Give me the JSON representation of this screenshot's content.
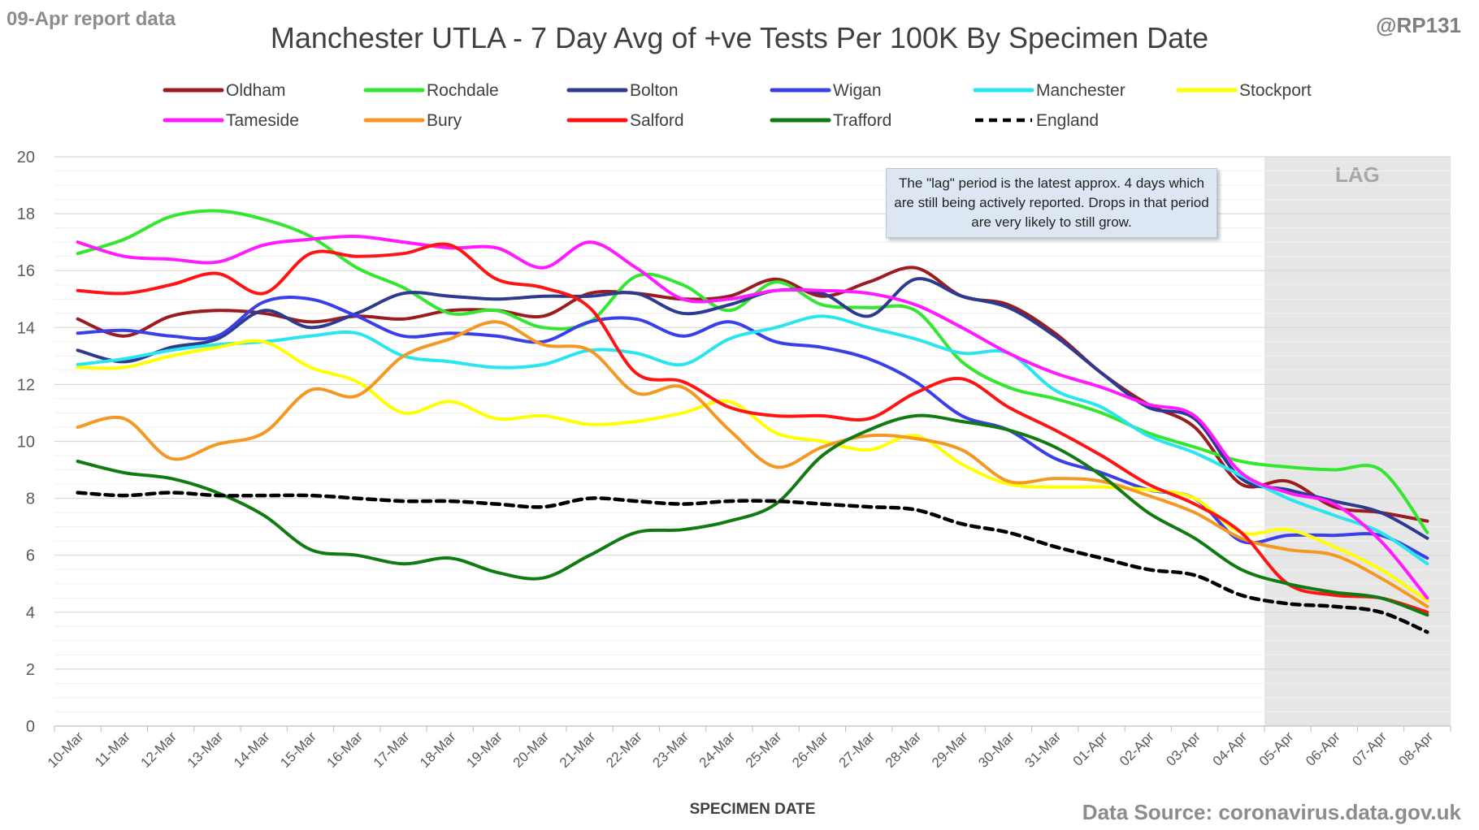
{
  "header": {
    "report_label": "09-Apr report data",
    "handle": "@RP131",
    "source": "Data Source: coronavirus.data.gov.uk"
  },
  "annotation": {
    "text": "The \"lag\" period is the latest approx. 4 days which are still being actively reported. Drops in that period are very likely to still grow."
  },
  "chart_data": {
    "type": "line",
    "title": "Manchester UTLA - 7 Day Avg of +ve Tests Per 100K By Specimen Date",
    "xlabel": "SPECIMEN DATE",
    "ylabel": "",
    "ylim": [
      0,
      20
    ],
    "yticks": [
      0,
      2,
      4,
      6,
      8,
      10,
      12,
      14,
      16,
      18,
      20
    ],
    "grid": true,
    "legend_position": "top",
    "lag_region": {
      "label": "LAG",
      "from": "05-Apr",
      "to": "08-Apr"
    },
    "categories": [
      "10-Mar",
      "11-Mar",
      "12-Mar",
      "13-Mar",
      "14-Mar",
      "15-Mar",
      "16-Mar",
      "17-Mar",
      "18-Mar",
      "19-Mar",
      "20-Mar",
      "21-Mar",
      "22-Mar",
      "23-Mar",
      "24-Mar",
      "25-Mar",
      "26-Mar",
      "27-Mar",
      "28-Mar",
      "29-Mar",
      "30-Mar",
      "31-Mar",
      "01-Apr",
      "02-Apr",
      "03-Apr",
      "04-Apr",
      "05-Apr",
      "06-Apr",
      "07-Apr",
      "08-Apr"
    ],
    "series": [
      {
        "name": "Oldham",
        "color": "#9b1b1e",
        "dash": false,
        "values": [
          14.3,
          13.7,
          14.4,
          14.6,
          14.5,
          14.2,
          14.4,
          14.3,
          14.6,
          14.6,
          14.4,
          15.2,
          15.2,
          15.0,
          15.1,
          15.7,
          15.1,
          15.6,
          16.1,
          15.1,
          14.8,
          13.8,
          12.4,
          11.3,
          10.5,
          8.5,
          8.6,
          7.7,
          7.5,
          7.2
        ]
      },
      {
        "name": "Rochdale",
        "color": "#33e62e",
        "dash": false,
        "values": [
          16.6,
          17.1,
          17.9,
          18.1,
          17.8,
          17.2,
          16.1,
          15.4,
          14.5,
          14.6,
          14.0,
          14.2,
          15.8,
          15.5,
          14.6,
          15.6,
          14.8,
          14.7,
          14.6,
          12.8,
          11.9,
          11.5,
          11.0,
          10.3,
          9.8,
          9.3,
          9.1,
          9.0,
          9.0,
          6.8
        ]
      },
      {
        "name": "Bolton",
        "color": "#2e3a8e",
        "dash": false,
        "values": [
          13.2,
          12.8,
          13.3,
          13.6,
          14.6,
          14.0,
          14.5,
          15.2,
          15.1,
          15.0,
          15.1,
          15.1,
          15.2,
          14.5,
          14.8,
          15.3,
          15.2,
          14.4,
          15.7,
          15.1,
          14.7,
          13.7,
          12.4,
          11.2,
          10.8,
          8.7,
          8.3,
          7.9,
          7.5,
          6.6
        ]
      },
      {
        "name": "Wigan",
        "color": "#3a3fe8",
        "dash": false,
        "values": [
          13.8,
          13.9,
          13.7,
          13.7,
          14.9,
          15.0,
          14.4,
          13.7,
          13.8,
          13.7,
          13.5,
          14.2,
          14.3,
          13.7,
          14.2,
          13.5,
          13.3,
          12.9,
          12.1,
          10.9,
          10.4,
          9.4,
          8.9,
          8.3,
          8.0,
          6.5,
          6.7,
          6.7,
          6.7,
          5.9
        ]
      },
      {
        "name": "Manchester",
        "color": "#29e5ee",
        "dash": false,
        "values": [
          12.7,
          12.9,
          13.2,
          13.4,
          13.5,
          13.7,
          13.8,
          13.0,
          12.8,
          12.6,
          12.7,
          13.2,
          13.1,
          12.7,
          13.6,
          14.0,
          14.4,
          14.0,
          13.6,
          13.1,
          13.1,
          11.8,
          11.2,
          10.2,
          9.6,
          8.8,
          8.0,
          7.4,
          6.8,
          5.7
        ]
      },
      {
        "name": "Stockport",
        "color": "#ffff00",
        "dash": false,
        "values": [
          12.6,
          12.6,
          13.0,
          13.3,
          13.5,
          12.6,
          12.1,
          11.0,
          11.4,
          10.8,
          10.9,
          10.6,
          10.7,
          11.0,
          11.4,
          10.3,
          10.0,
          9.7,
          10.2,
          9.2,
          8.5,
          8.4,
          8.4,
          8.3,
          8.0,
          6.8,
          6.9,
          6.3,
          5.5,
          4.4
        ]
      },
      {
        "name": "Tameside",
        "color": "#ff1aff",
        "dash": false,
        "values": [
          17.0,
          16.5,
          16.4,
          16.3,
          16.9,
          17.1,
          17.2,
          17.0,
          16.8,
          16.8,
          16.1,
          17.0,
          16.1,
          15.0,
          15.0,
          15.3,
          15.3,
          15.2,
          14.8,
          14.0,
          13.1,
          12.4,
          11.9,
          11.3,
          10.9,
          8.9,
          8.2,
          7.8,
          6.5,
          4.5
        ]
      },
      {
        "name": "Bury",
        "color": "#f59823",
        "dash": false,
        "values": [
          10.5,
          10.8,
          9.4,
          9.9,
          10.3,
          11.8,
          11.6,
          13.0,
          13.6,
          14.2,
          13.4,
          13.2,
          11.7,
          11.9,
          10.4,
          9.1,
          9.8,
          10.2,
          10.1,
          9.7,
          8.6,
          8.7,
          8.6,
          8.1,
          7.5,
          6.6,
          6.2,
          6.0,
          5.2,
          4.2
        ]
      },
      {
        "name": "Salford",
        "color": "#ff1414",
        "dash": false,
        "values": [
          15.3,
          15.2,
          15.5,
          15.9,
          15.2,
          16.6,
          16.5,
          16.6,
          16.9,
          15.7,
          15.4,
          14.7,
          12.4,
          12.1,
          11.2,
          10.9,
          10.9,
          10.8,
          11.7,
          12.2,
          11.2,
          10.4,
          9.5,
          8.5,
          7.8,
          6.8,
          5.0,
          4.6,
          4.5,
          4.0
        ]
      },
      {
        "name": "Trafford",
        "color": "#117a12",
        "dash": false,
        "values": [
          9.3,
          8.9,
          8.7,
          8.2,
          7.4,
          6.2,
          6.0,
          5.7,
          5.9,
          5.4,
          5.2,
          6.0,
          6.8,
          6.9,
          7.2,
          7.8,
          9.5,
          10.4,
          10.9,
          10.7,
          10.4,
          9.8,
          8.8,
          7.5,
          6.6,
          5.5,
          5.0,
          4.7,
          4.5,
          3.9
        ]
      },
      {
        "name": "England",
        "color": "#000000",
        "dash": true,
        "values": [
          8.2,
          8.1,
          8.2,
          8.1,
          8.1,
          8.1,
          8.0,
          7.9,
          7.9,
          7.8,
          7.7,
          8.0,
          7.9,
          7.8,
          7.9,
          7.9,
          7.8,
          7.7,
          7.6,
          7.1,
          6.8,
          6.3,
          5.9,
          5.5,
          5.3,
          4.6,
          4.3,
          4.2,
          4.0,
          3.3
        ]
      }
    ]
  }
}
